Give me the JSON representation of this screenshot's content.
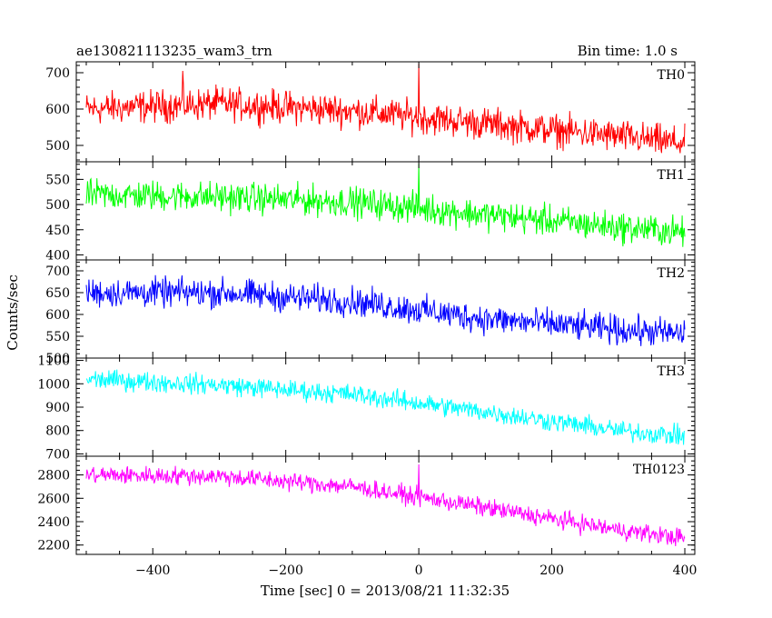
{
  "header": {
    "title": "ae130821113235_wam3_trn",
    "bin_time": "Bin time: 1.0 s"
  },
  "chart_data": {
    "type": "line",
    "xlabel": "Time [sec] 0 = 2013/08/21 11:32:35",
    "ylabel": "Counts/sec",
    "xlim": [
      -515,
      415
    ],
    "x_ticks": [
      -400,
      -200,
      0,
      200,
      400
    ],
    "panels": [
      {
        "name": "TH0",
        "color": "#ff0000",
        "ylim": [
          455,
          730
        ],
        "y_ticks": [
          500,
          600,
          700
        ],
        "trend": {
          "x": [
            -500,
            -300,
            -100,
            100,
            300,
            400
          ],
          "y": [
            600,
            615,
            595,
            560,
            525,
            505
          ]
        },
        "noise": 40,
        "spikes": [
          {
            "x": 0,
            "y": 725
          },
          {
            "x": -355,
            "y": 705
          }
        ]
      },
      {
        "name": "TH1",
        "color": "#00ff00",
        "ylim": [
          390,
          585
        ],
        "y_ticks": [
          400,
          450,
          500,
          550
        ],
        "trend": {
          "x": [
            -500,
            -300,
            -100,
            100,
            300,
            400
          ],
          "y": [
            520,
            515,
            505,
            480,
            455,
            445
          ]
        },
        "noise": 27,
        "spikes": [
          {
            "x": 0,
            "y": 582
          }
        ]
      },
      {
        "name": "TH2",
        "color": "#0000ff",
        "ylim": [
          500,
          725
        ],
        "y_ticks": [
          500,
          550,
          600,
          650,
          700
        ],
        "trend": {
          "x": [
            -500,
            -300,
            -100,
            100,
            300,
            400
          ],
          "y": [
            650,
            650,
            630,
            590,
            565,
            555
          ]
        },
        "noise": 30,
        "spikes": []
      },
      {
        "name": "TH3",
        "color": "#00ffff",
        "ylim": [
          690,
          1110
        ],
        "y_ticks": [
          700,
          800,
          900,
          1000,
          1100
        ],
        "trend": {
          "x": [
            -500,
            -300,
            -100,
            100,
            300,
            400
          ],
          "y": [
            1020,
            995,
            955,
            880,
            800,
            775
          ]
        },
        "noise": 38,
        "spikes": []
      },
      {
        "name": "TH0123",
        "color": "#ff00ff",
        "ylim": [
          2120,
          2960
        ],
        "y_ticks": [
          2200,
          2400,
          2600,
          2800
        ],
        "trend": {
          "x": [
            -500,
            -300,
            -100,
            100,
            300,
            400
          ],
          "y": [
            2800,
            2790,
            2700,
            2520,
            2330,
            2260
          ]
        },
        "noise": 70,
        "spikes": [
          {
            "x": 0,
            "y": 2890
          }
        ]
      }
    ]
  }
}
